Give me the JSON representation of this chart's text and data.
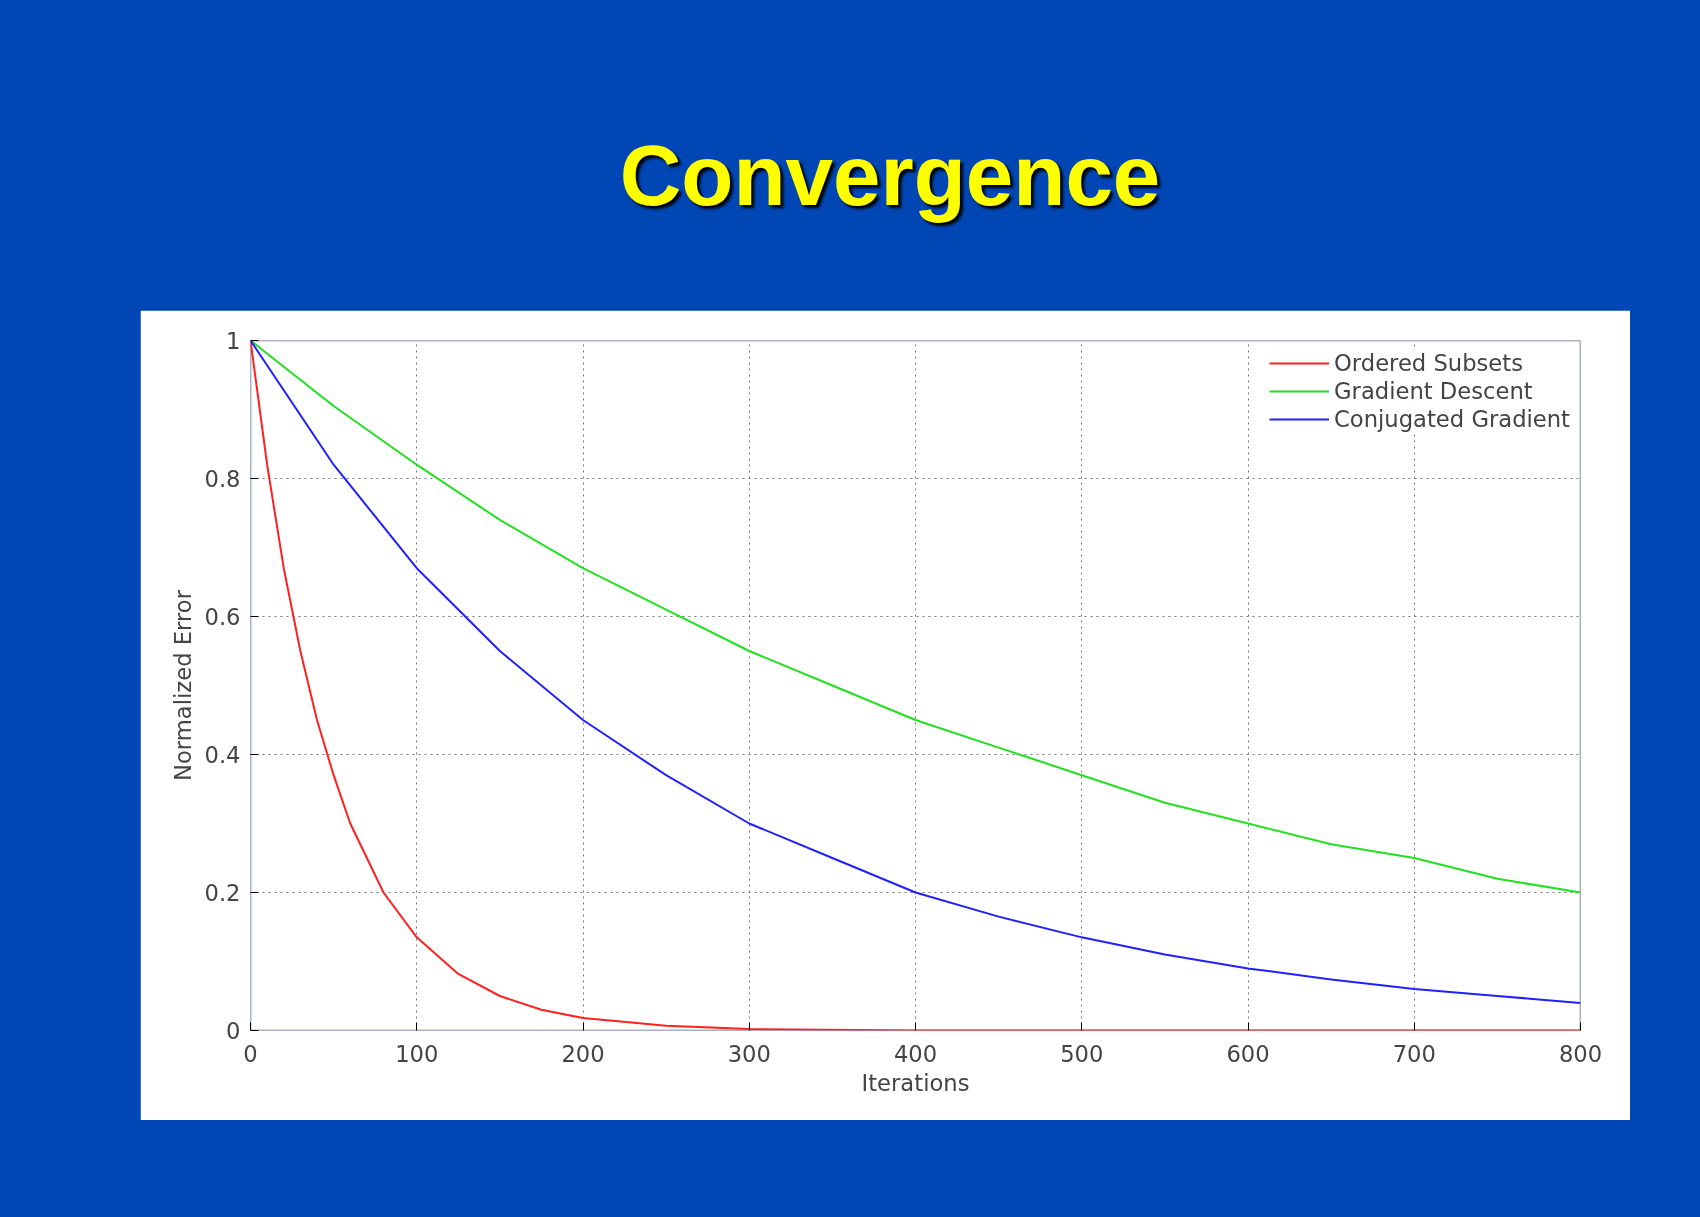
{
  "chart_data": {
    "type": "line",
    "title": "Convergence",
    "xlabel": "Iterations",
    "ylabel": "Normalized Error",
    "xlim": [
      0,
      800
    ],
    "ylim": [
      0,
      1
    ],
    "xticks": [
      0,
      100,
      200,
      300,
      400,
      500,
      600,
      700,
      800
    ],
    "yticks": [
      0,
      0.2,
      0.4,
      0.6,
      0.8,
      1
    ],
    "grid": true,
    "legend": "top right",
    "line_style": "solid",
    "marker": "none",
    "series": [
      {
        "name": "Ordered Subsets",
        "color": "#ff2020",
        "x": [
          0,
          10,
          20,
          30,
          40,
          50,
          60,
          80,
          100,
          125,
          150,
          175,
          200,
          250,
          300,
          400,
          500,
          600,
          700,
          800
        ],
        "values": [
          1,
          0.82,
          0.67,
          0.55,
          0.45,
          0.37,
          0.3,
          0.2,
          0.135,
          0.082,
          0.05,
          0.03,
          0.018,
          0.007,
          0.002,
          0,
          0,
          0,
          0,
          0
        ]
      },
      {
        "name": "Gradient Descent",
        "color": "#20e020",
        "x": [
          0,
          50,
          100,
          150,
          200,
          250,
          300,
          350,
          400,
          450,
          500,
          550,
          600,
          650,
          700,
          750,
          800
        ],
        "values": [
          1,
          0.905,
          0.82,
          0.74,
          0.67,
          0.61,
          0.55,
          0.5,
          0.45,
          0.41,
          0.37,
          0.33,
          0.3,
          0.27,
          0.25,
          0.22,
          0.2
        ]
      },
      {
        "name": "Conjugated Gradient",
        "color": "#2020ff",
        "x": [
          0,
          50,
          100,
          150,
          200,
          250,
          300,
          350,
          400,
          450,
          500,
          550,
          600,
          650,
          700,
          750,
          800
        ],
        "values": [
          1,
          0.82,
          0.67,
          0.55,
          0.45,
          0.37,
          0.3,
          0.25,
          0.2,
          0.165,
          0.135,
          0.11,
          0.09,
          0.074,
          0.06,
          0.05,
          0.04
        ]
      }
    ]
  }
}
